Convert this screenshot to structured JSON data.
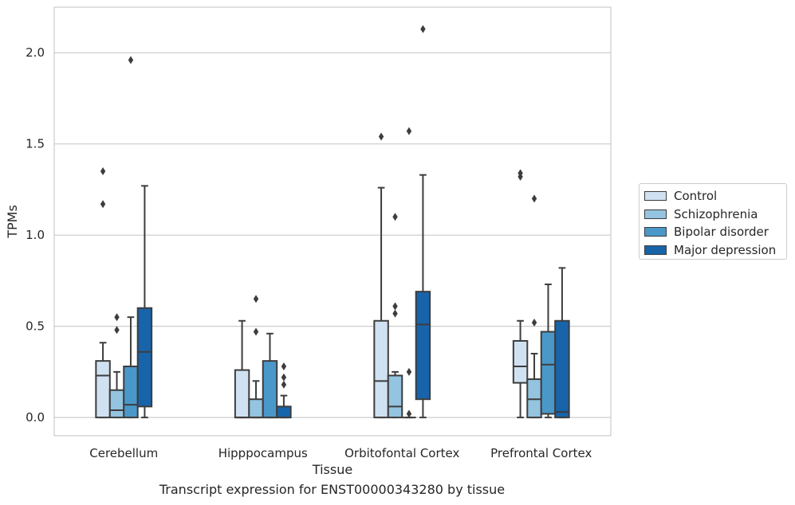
{
  "caption": "Transcript expression for ENST00000343280 by tissue",
  "legend": {
    "items": [
      {
        "label": "Control",
        "color": "#d0e1f2"
      },
      {
        "label": "Schizophrenia",
        "color": "#94c4df"
      },
      {
        "label": "Bipolar disorder",
        "color": "#4a98c9"
      },
      {
        "label": "Major depression",
        "color": "#1764ab"
      }
    ],
    "placement": "outside-right"
  },
  "chart_data": {
    "type": "box",
    "xlabel": "Tissue",
    "ylabel": "TPMs",
    "ylim": [
      -0.1,
      2.25
    ],
    "yticks": [
      0.0,
      0.5,
      1.0,
      1.5,
      2.0
    ],
    "ytick_labels": [
      "0.0",
      "0.5",
      "1.0",
      "1.5",
      "2.0"
    ],
    "grid": "horizontal",
    "categories": [
      "Cerebellum",
      "Hipppocampus",
      "Orbitofontal Cortex",
      "Prefrontal Cortex"
    ],
    "series": [
      {
        "name": "Control",
        "color": "#d0e1f2",
        "boxes": [
          {
            "whislo": 0.0,
            "q1": 0.0,
            "med": 0.23,
            "q3": 0.31,
            "whishi": 0.41,
            "fliers": [
              1.17,
              1.35
            ]
          },
          {
            "whislo": 0.0,
            "q1": 0.0,
            "med": 0.0,
            "q3": 0.26,
            "whishi": 0.53,
            "fliers": []
          },
          {
            "whislo": 0.0,
            "q1": 0.0,
            "med": 0.2,
            "q3": 0.53,
            "whishi": 1.26,
            "fliers": [
              1.54
            ]
          },
          {
            "whislo": 0.0,
            "q1": 0.19,
            "med": 0.28,
            "q3": 0.42,
            "whishi": 0.53,
            "fliers": [
              1.32,
              1.34
            ]
          }
        ]
      },
      {
        "name": "Schizophrenia",
        "color": "#94c4df",
        "boxes": [
          {
            "whislo": 0.0,
            "q1": 0.0,
            "med": 0.04,
            "q3": 0.15,
            "whishi": 0.25,
            "fliers": [
              0.48,
              0.55
            ]
          },
          {
            "whislo": 0.0,
            "q1": 0.0,
            "med": 0.0,
            "q3": 0.1,
            "whishi": 0.2,
            "fliers": [
              0.47,
              0.65
            ]
          },
          {
            "whislo": 0.0,
            "q1": 0.0,
            "med": 0.06,
            "q3": 0.23,
            "whishi": 0.25,
            "fliers": [
              0.57,
              0.61,
              1.1
            ]
          },
          {
            "whislo": 0.0,
            "q1": 0.0,
            "med": 0.1,
            "q3": 0.21,
            "whishi": 0.35,
            "fliers": [
              0.52,
              1.2
            ]
          }
        ]
      },
      {
        "name": "Bipolar disorder",
        "color": "#4a98c9",
        "boxes": [
          {
            "whislo": 0.0,
            "q1": 0.0,
            "med": 0.07,
            "q3": 0.28,
            "whishi": 0.55,
            "fliers": [
              1.96
            ]
          },
          {
            "whislo": 0.0,
            "q1": 0.0,
            "med": 0.0,
            "q3": 0.31,
            "whishi": 0.46,
            "fliers": []
          },
          {
            "whislo": 0.0,
            "q1": 0.0,
            "med": 0.0,
            "q3": 0.0,
            "whishi": 0.0,
            "fliers": [
              0.02,
              0.25,
              1.57
            ]
          },
          {
            "whislo": 0.0,
            "q1": 0.02,
            "med": 0.29,
            "q3": 0.47,
            "whishi": 0.73,
            "fliers": []
          }
        ]
      },
      {
        "name": "Major depression",
        "color": "#1764ab",
        "boxes": [
          {
            "whislo": 0.0,
            "q1": 0.06,
            "med": 0.36,
            "q3": 0.6,
            "whishi": 1.27,
            "fliers": []
          },
          {
            "whislo": 0.0,
            "q1": 0.0,
            "med": 0.0,
            "q3": 0.06,
            "whishi": 0.12,
            "fliers": [
              0.18,
              0.22,
              0.28
            ]
          },
          {
            "whislo": 0.0,
            "q1": 0.1,
            "med": 0.51,
            "q3": 0.69,
            "whishi": 1.33,
            "fliers": [
              2.13
            ]
          },
          {
            "whislo": 0.0,
            "q1": 0.0,
            "med": 0.03,
            "q3": 0.53,
            "whishi": 0.82,
            "fliers": []
          }
        ]
      }
    ]
  }
}
